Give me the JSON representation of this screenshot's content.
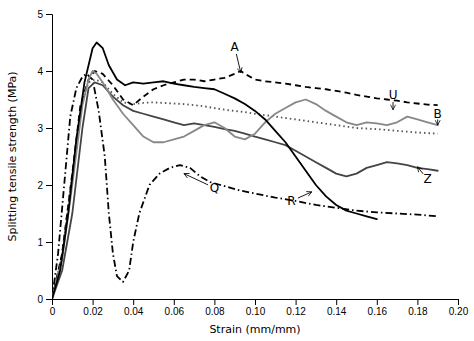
{
  "chart_data": {
    "type": "line",
    "xlabel": "Strain (mm/mm)",
    "ylabel": "Splitting tensile strength (MPa)",
    "xlim": [
      0,
      0.2
    ],
    "ylim": [
      0,
      5
    ],
    "xticks": [
      0,
      0.02,
      0.04,
      0.06,
      0.08,
      {
        "value": 0.1,
        "label": "0.10"
      },
      0.12,
      0.14,
      0.16,
      0.18,
      {
        "value": 0.2,
        "label": "0.20"
      }
    ],
    "yticks": [
      0,
      1,
      2,
      3,
      4,
      5
    ],
    "series": [
      {
        "color": "#000000",
        "line_style": "dashdot",
        "x": [
          0,
          0.003,
          0.006,
          0.009,
          0.012,
          0.015,
          0.017,
          0.02,
          0.023,
          0.026,
          0.028,
          0.03,
          0.032,
          0.035,
          0.038,
          0.04,
          0.043,
          0.048,
          0.053,
          0.058,
          0.063,
          0.068,
          0.073,
          0.078,
          0.083,
          0.088,
          0.093,
          0.1,
          0.11,
          0.12,
          0.13,
          0.14,
          0.15,
          0.16,
          0.17,
          0.18,
          0.19
        ],
        "values": [
          0,
          0.8,
          2.0,
          3.2,
          3.7,
          3.9,
          3.95,
          3.85,
          3.3,
          2.5,
          1.5,
          0.8,
          0.4,
          0.3,
          0.5,
          1.0,
          1.5,
          2.0,
          2.2,
          2.3,
          2.35,
          2.3,
          2.15,
          2.05,
          2.0,
          1.95,
          1.9,
          1.85,
          1.78,
          1.72,
          1.65,
          1.6,
          1.55,
          1.52,
          1.5,
          1.48,
          1.45
        ]
      },
      {
        "color": "#444444",
        "line_style": "solid",
        "x": [
          0,
          0.005,
          0.01,
          0.015,
          0.018,
          0.021,
          0.025,
          0.03,
          0.035,
          0.04,
          0.045,
          0.05,
          0.055,
          0.06,
          0.065,
          0.07,
          0.075,
          0.08,
          0.085,
          0.09,
          0.095,
          0.1,
          0.105,
          0.11,
          0.115,
          0.12,
          0.125,
          0.13,
          0.135,
          0.14,
          0.145,
          0.15,
          0.155,
          0.16,
          0.165,
          0.17,
          0.175,
          0.18,
          0.185,
          0.19
        ],
        "values": [
          0,
          0.5,
          1.5,
          3.0,
          3.7,
          3.8,
          3.75,
          3.55,
          3.4,
          3.3,
          3.25,
          3.2,
          3.15,
          3.1,
          3.05,
          3.08,
          3.05,
          3.02,
          2.98,
          2.95,
          2.9,
          2.85,
          2.8,
          2.75,
          2.7,
          2.6,
          2.5,
          2.4,
          2.3,
          2.2,
          2.15,
          2.2,
          2.3,
          2.35,
          2.4,
          2.38,
          2.35,
          2.3,
          2.28,
          2.25
        ]
      },
      {
        "color": "#555555",
        "line_style": "dotted",
        "x": [
          0,
          0.005,
          0.01,
          0.015,
          0.018,
          0.021,
          0.025,
          0.03,
          0.035,
          0.04,
          0.045,
          0.05,
          0.055,
          0.06,
          0.065,
          0.07,
          0.075,
          0.08,
          0.085,
          0.09,
          0.095,
          0.1,
          0.11,
          0.12,
          0.13,
          0.14,
          0.15,
          0.16,
          0.17,
          0.18,
          0.19
        ],
        "values": [
          0,
          0.8,
          2.2,
          3.5,
          3.8,
          3.85,
          3.8,
          3.6,
          3.45,
          3.42,
          3.44,
          3.45,
          3.44,
          3.43,
          3.42,
          3.4,
          3.38,
          3.35,
          3.32,
          3.3,
          3.28,
          3.25,
          3.2,
          3.15,
          3.1,
          3.05,
          3.0,
          2.98,
          2.95,
          2.92,
          2.9
        ]
      },
      {
        "color": "#000000",
        "line_style": "dashed",
        "x": [
          0,
          0.005,
          0.01,
          0.014,
          0.018,
          0.021,
          0.025,
          0.03,
          0.035,
          0.04,
          0.045,
          0.05,
          0.055,
          0.06,
          0.065,
          0.07,
          0.075,
          0.08,
          0.085,
          0.09,
          0.093,
          0.095,
          0.1,
          0.105,
          0.11,
          0.115,
          0.12,
          0.125,
          0.13,
          0.135,
          0.14,
          0.145,
          0.15,
          0.155,
          0.16,
          0.165,
          0.17,
          0.175,
          0.18,
          0.185,
          0.19
        ],
        "values": [
          0,
          0.8,
          2.2,
          3.4,
          3.85,
          4.0,
          3.95,
          3.75,
          3.5,
          3.4,
          3.55,
          3.68,
          3.75,
          3.8,
          3.85,
          3.85,
          3.82,
          3.85,
          3.88,
          3.95,
          4.0,
          3.95,
          3.85,
          3.82,
          3.8,
          3.78,
          3.75,
          3.72,
          3.7,
          3.68,
          3.65,
          3.62,
          3.58,
          3.55,
          3.52,
          3.5,
          3.48,
          3.45,
          3.43,
          3.41,
          3.4
        ]
      },
      {
        "color": "#888888",
        "line_style": "solid",
        "x": [
          0,
          0.005,
          0.01,
          0.015,
          0.018,
          0.02,
          0.022,
          0.025,
          0.03,
          0.035,
          0.04,
          0.045,
          0.05,
          0.055,
          0.06,
          0.065,
          0.07,
          0.075,
          0.08,
          0.085,
          0.09,
          0.095,
          0.1,
          0.105,
          0.11,
          0.115,
          0.12,
          0.125,
          0.13,
          0.135,
          0.14,
          0.145,
          0.15,
          0.155,
          0.16,
          0.165,
          0.17,
          0.175,
          0.18,
          0.185,
          0.19
        ],
        "values": [
          0,
          0.7,
          2.0,
          3.4,
          3.85,
          4.0,
          3.95,
          3.8,
          3.5,
          3.25,
          3.05,
          2.85,
          2.75,
          2.75,
          2.8,
          2.85,
          2.95,
          3.05,
          3.1,
          3.0,
          2.85,
          2.8,
          2.9,
          3.1,
          3.25,
          3.35,
          3.45,
          3.5,
          3.42,
          3.3,
          3.2,
          3.1,
          3.05,
          3.1,
          3.08,
          3.05,
          3.1,
          3.2,
          3.15,
          3.1,
          3.05
        ]
      },
      {
        "color": "#000000",
        "line_style": "solid",
        "x": [
          0,
          0.004,
          0.008,
          0.012,
          0.016,
          0.02,
          0.022,
          0.025,
          0.028,
          0.032,
          0.036,
          0.04,
          0.045,
          0.05,
          0.055,
          0.06,
          0.065,
          0.07,
          0.075,
          0.08,
          0.085,
          0.09,
          0.095,
          0.1,
          0.105,
          0.11,
          0.115,
          0.12,
          0.125,
          0.13,
          0.135,
          0.14,
          0.145,
          0.15,
          0.155,
          0.16
        ],
        "values": [
          0,
          0.5,
          1.5,
          2.8,
          3.8,
          4.4,
          4.5,
          4.4,
          4.1,
          3.85,
          3.75,
          3.8,
          3.78,
          3.8,
          3.82,
          3.78,
          3.75,
          3.72,
          3.7,
          3.68,
          3.6,
          3.52,
          3.42,
          3.3,
          3.15,
          2.95,
          2.75,
          2.5,
          2.25,
          2.0,
          1.8,
          1.65,
          1.55,
          1.5,
          1.45,
          1.4
        ]
      }
    ],
    "annotations": [
      {
        "text": "A",
        "xy": [
          0.093,
          3.97
        ],
        "xytext": [
          0.09,
          4.42
        ]
      },
      {
        "text": "Q",
        "xy": [
          0.065,
          2.2
        ],
        "xytext": [
          0.08,
          1.95
        ]
      },
      {
        "text": "R",
        "xy": [
          0.128,
          1.88
        ],
        "xytext": [
          0.118,
          1.72
        ]
      },
      {
        "text": "U",
        "xy": [
          0.168,
          3.32
        ],
        "xytext": [
          0.168,
          3.58
        ]
      },
      {
        "text": "B",
        "xy": [
          0.19,
          3.05
        ],
        "xytext": [
          0.19,
          3.25
        ]
      },
      {
        "text": "Z",
        "xy": [
          0.18,
          2.32
        ],
        "xytext": [
          0.185,
          2.1
        ]
      }
    ]
  }
}
